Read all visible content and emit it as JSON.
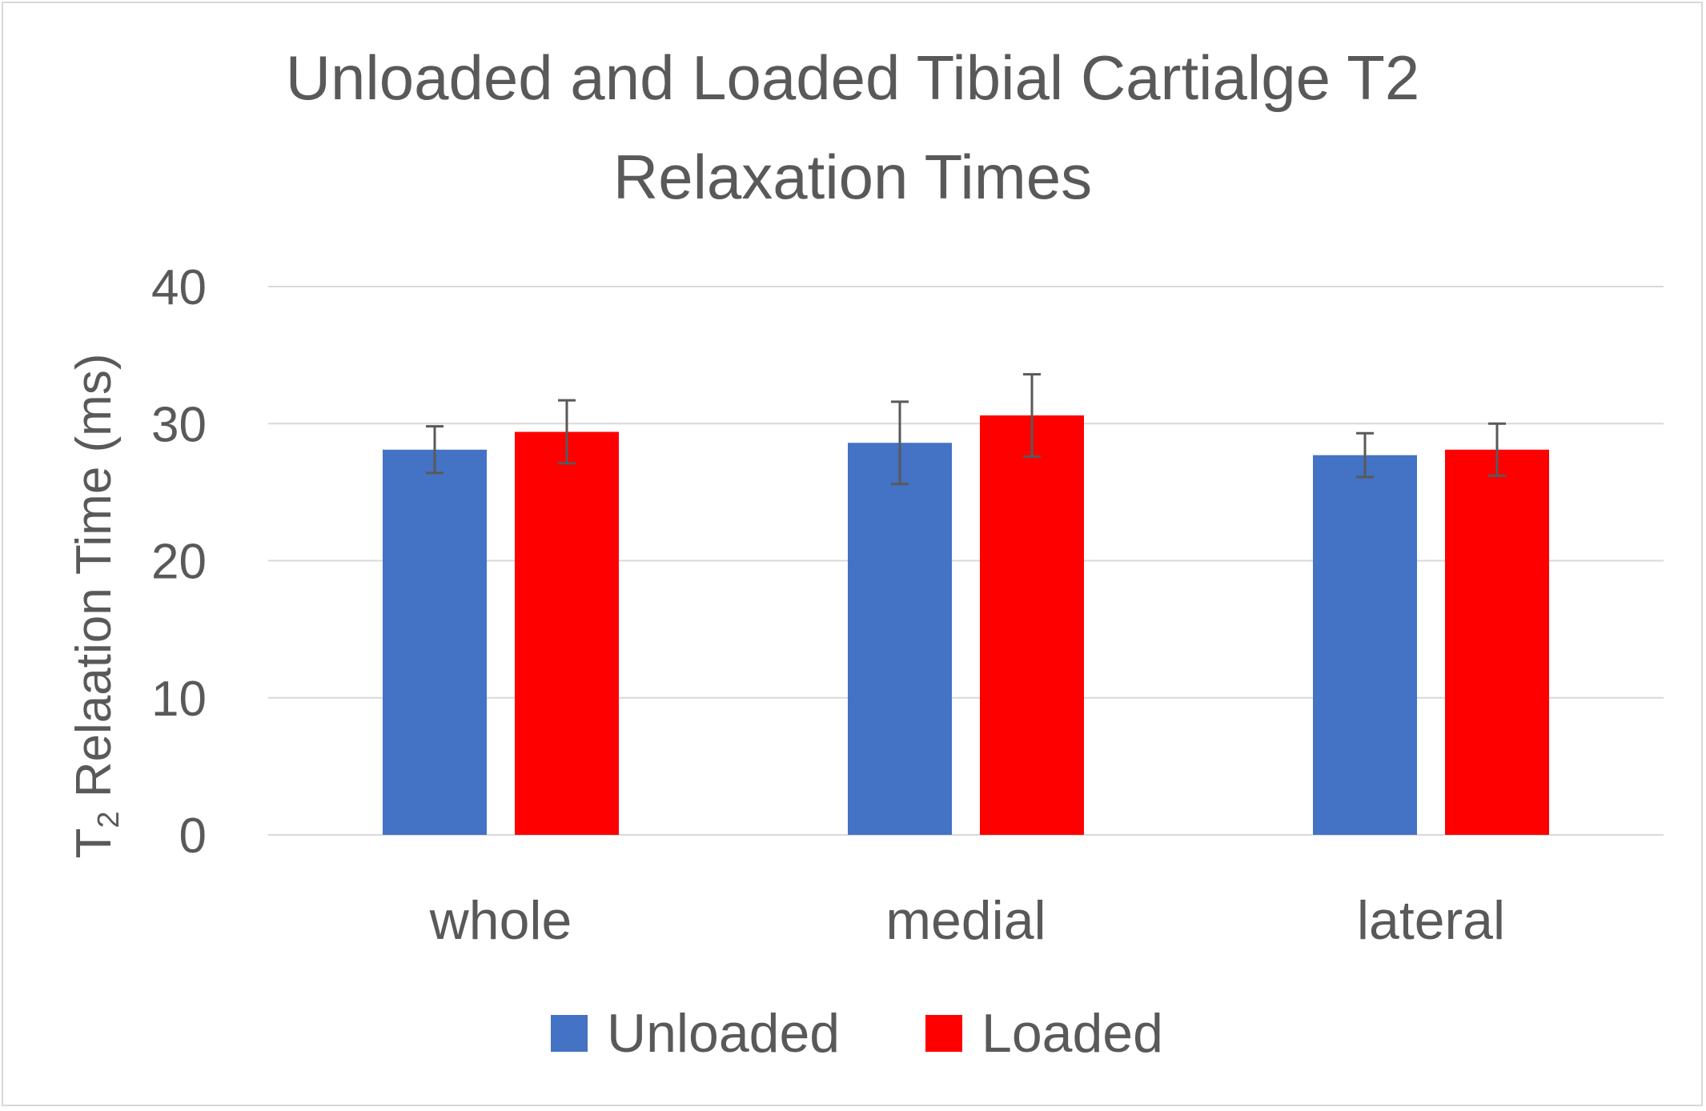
{
  "chart_data": {
    "type": "bar",
    "title_lines": [
      "Unloaded and Loaded Tibial Cartialge T2",
      "Relaxation Times"
    ],
    "ylabel_main": "T",
    "ylabel_sub": "2",
    "ylabel_rest": " Relaation Time (ms)",
    "xlabel": "",
    "ylim": [
      0,
      40
    ],
    "yticks": [
      "0",
      "10",
      "20",
      "30",
      "40"
    ],
    "categories": [
      "whole",
      "medial",
      "lateral"
    ],
    "series": [
      {
        "name": "Unloaded",
        "color": "#4472c4",
        "values": [
          28.1,
          28.6,
          27.7
        ],
        "errors": [
          1.7,
          3.0,
          1.6
        ]
      },
      {
        "name": "Loaded",
        "color": "#ff0000",
        "values": [
          29.4,
          30.6,
          28.1
        ],
        "errors": [
          2.3,
          3.0,
          1.9
        ]
      }
    ],
    "grid": true,
    "legend_position": "bottom"
  }
}
